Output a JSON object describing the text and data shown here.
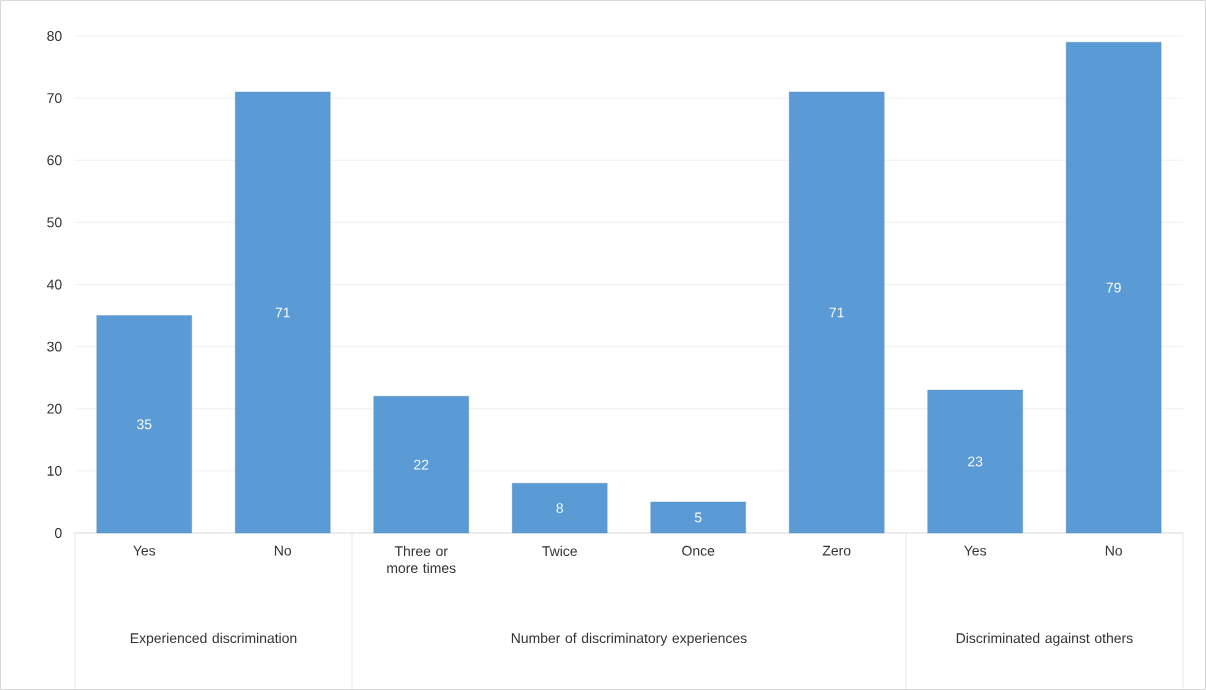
{
  "chart_data": {
    "type": "bar",
    "categories": [
      "Yes",
      "No",
      "Three or more times",
      "Twice",
      "Once",
      "Zero",
      "Yes",
      "No"
    ],
    "values": [
      35,
      71,
      22,
      8,
      5,
      71,
      23,
      79
    ],
    "color": "#5b9bd5",
    "ylim": [
      0,
      80
    ],
    "yticks": [
      0,
      10,
      20,
      30,
      40,
      50,
      60,
      70,
      80
    ],
    "grid": "y",
    "data_labels": true,
    "annotations": [
      "Experienced discrimination",
      "Number of discriminatory experiences",
      "Discriminated against others"
    ]
  }
}
